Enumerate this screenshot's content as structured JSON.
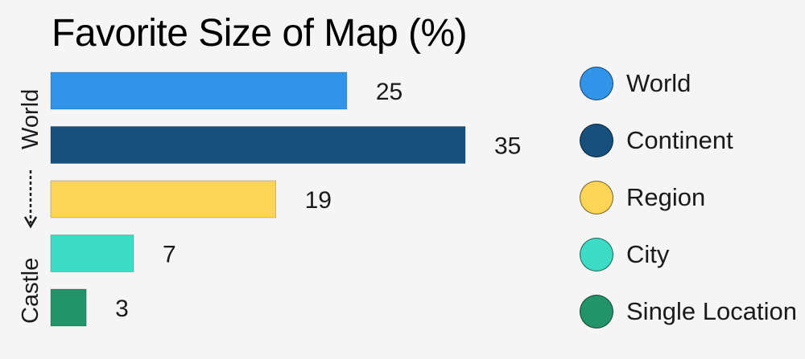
{
  "chart_data": {
    "type": "bar",
    "orientation": "horizontal",
    "title": "Favorite Size of Map (%)",
    "categories": [
      "World",
      "Continent",
      "Region",
      "City",
      "Single Location"
    ],
    "values": [
      25,
      35,
      19,
      7,
      3
    ],
    "colors": [
      "#3194e8",
      "#174f7d",
      "#fdd556",
      "#3ddcc4",
      "#23946a"
    ],
    "xlim": [
      0,
      35
    ],
    "grid": false,
    "legend_position": "right",
    "y_axis_top_label": "World",
    "y_axis_bottom_label": "Castle"
  }
}
